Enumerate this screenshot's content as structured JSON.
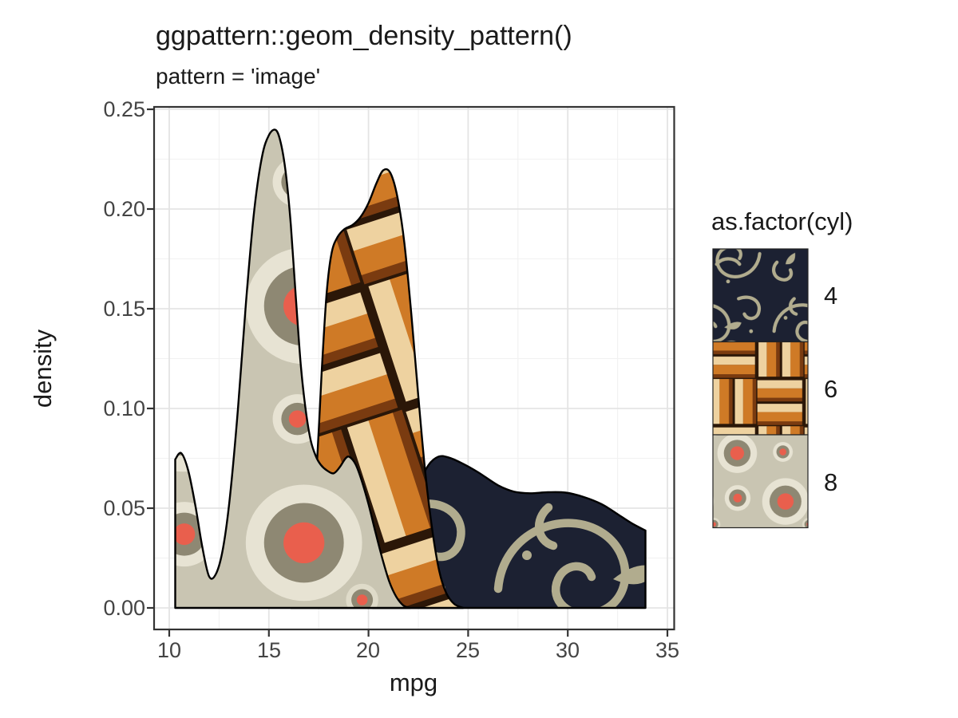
{
  "title": "ggpattern::geom_density_pattern()",
  "subtitle": "pattern = 'image'",
  "axes": {
    "x": {
      "label": "mpg",
      "ticks": [
        "10",
        "15",
        "20",
        "25",
        "30",
        "35"
      ]
    },
    "y": {
      "label": "density",
      "ticks": [
        "0.00",
        "0.05",
        "0.10",
        "0.15",
        "0.20",
        "0.25"
      ]
    }
  },
  "legend": {
    "title": "as.factor(cyl)",
    "items": [
      {
        "label": "4",
        "pattern_name": "navy-damask-swirls"
      },
      {
        "label": "6",
        "pattern_name": "orange-basket-weave"
      },
      {
        "label": "8",
        "pattern_name": "cream-red-circles"
      }
    ]
  },
  "colors": {
    "panel_border": "#333333",
    "grid_major": "#e4e4e4",
    "grid_minor": "#f1f1f1",
    "tick_text": "#444444",
    "outline": "#000000",
    "damask_bg": "#1c2132",
    "damask_fg": "#b1ac8e",
    "weave_bg": "#2b1708",
    "weave_orange": "#cf7a26",
    "weave_cream": "#eed2a0",
    "weave_shadow": "#7a3b10",
    "circles_bg": "#c9c5b2",
    "circles_outer": "#e7e3d3",
    "circles_ring": "#8e8873",
    "circles_center": "#e95f4d"
  },
  "chart_data": {
    "type": "area",
    "title": "ggpattern::geom_density_pattern()",
    "subtitle": "pattern = 'image'",
    "xlabel": "mpg",
    "ylabel": "density",
    "xlim": [
      9.2,
      35.4
    ],
    "ylim": [
      -0.012,
      0.2515
    ],
    "x_ticks": [
      10,
      15,
      20,
      25,
      30,
      35
    ],
    "y_ticks": [
      0,
      0.05,
      0.1,
      0.15,
      0.2,
      0.25
    ],
    "grid": "major+minor",
    "legend_position": "right",
    "legend_title": "as.factor(cyl)",
    "series": [
      {
        "name": "4",
        "pattern": "pat-cyl4",
        "pattern_name": "navy-damask-swirls",
        "points": [
          [
            20.2,
            0
          ],
          [
            20.9,
            0.009
          ],
          [
            21.5,
            0.024
          ],
          [
            22.1,
            0.046
          ],
          [
            22.6,
            0.063
          ],
          [
            23.0,
            0.0715
          ],
          [
            23.5,
            0.0758
          ],
          [
            24.0,
            0.0755
          ],
          [
            24.7,
            0.0725
          ],
          [
            25.5,
            0.068
          ],
          [
            26.5,
            0.0615
          ],
          [
            27.3,
            0.0583
          ],
          [
            28.1,
            0.0575
          ],
          [
            29.0,
            0.058
          ],
          [
            29.9,
            0.0578
          ],
          [
            30.8,
            0.0556
          ],
          [
            31.7,
            0.052
          ],
          [
            32.5,
            0.047
          ],
          [
            33.2,
            0.0425
          ],
          [
            33.9,
            0.0388
          ]
        ]
      },
      {
        "name": "6",
        "pattern": "pat-cyl6",
        "pattern_name": "orange-basket-weave",
        "points": [
          [
            16.1,
            0
          ],
          [
            16.45,
            0.004
          ],
          [
            16.8,
            0.012
          ],
          [
            17.1,
            0.028
          ],
          [
            17.4,
            0.07
          ],
          [
            17.65,
            0.118
          ],
          [
            17.9,
            0.158
          ],
          [
            18.15,
            0.178
          ],
          [
            18.45,
            0.186
          ],
          [
            18.8,
            0.19
          ],
          [
            19.2,
            0.192
          ],
          [
            19.6,
            0.196
          ],
          [
            20.0,
            0.203
          ],
          [
            20.4,
            0.213
          ],
          [
            20.75,
            0.2195
          ],
          [
            21.1,
            0.218
          ],
          [
            21.45,
            0.206
          ],
          [
            21.8,
            0.183
          ],
          [
            22.15,
            0.147
          ],
          [
            22.5,
            0.106
          ],
          [
            22.85,
            0.068
          ],
          [
            23.2,
            0.039
          ],
          [
            23.55,
            0.0185
          ],
          [
            23.9,
            0.0075
          ],
          [
            24.3,
            0.002
          ],
          [
            24.75,
            0
          ]
        ]
      },
      {
        "name": "8",
        "pattern": "pat-cyl8",
        "pattern_name": "cream-red-circles",
        "points": [
          [
            10.3,
            0.0745
          ],
          [
            10.6,
            0.0776
          ],
          [
            10.95,
            0.069
          ],
          [
            11.3,
            0.052
          ],
          [
            11.65,
            0.031
          ],
          [
            12.0,
            0.0158
          ],
          [
            12.35,
            0.0172
          ],
          [
            12.7,
            0.03
          ],
          [
            13.05,
            0.056
          ],
          [
            13.45,
            0.1
          ],
          [
            13.85,
            0.153
          ],
          [
            14.25,
            0.198
          ],
          [
            14.65,
            0.226
          ],
          [
            15.0,
            0.237
          ],
          [
            15.35,
            0.2396
          ],
          [
            15.6,
            0.233
          ],
          [
            15.85,
            0.218
          ],
          [
            16.1,
            0.192
          ],
          [
            16.35,
            0.156
          ],
          [
            16.6,
            0.122
          ],
          [
            16.85,
            0.099
          ],
          [
            17.1,
            0.084
          ],
          [
            17.35,
            0.0762
          ],
          [
            17.6,
            0.0718
          ],
          [
            17.9,
            0.069
          ],
          [
            18.25,
            0.0675
          ],
          [
            18.55,
            0.0705
          ],
          [
            18.85,
            0.075
          ],
          [
            19.05,
            0.0757
          ],
          [
            19.35,
            0.072
          ],
          [
            19.65,
            0.064
          ],
          [
            20.0,
            0.052
          ],
          [
            20.35,
            0.038
          ],
          [
            20.7,
            0.0245
          ],
          [
            21.05,
            0.013
          ],
          [
            21.4,
            0.0055
          ],
          [
            21.75,
            0.0012
          ],
          [
            22.1,
            0
          ]
        ]
      }
    ]
  }
}
